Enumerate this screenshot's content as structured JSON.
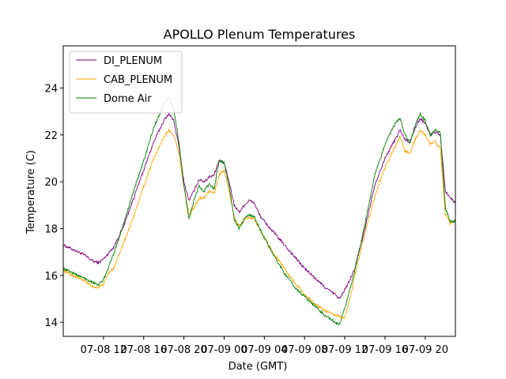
{
  "chart_data": {
    "type": "line",
    "title": "APOLLO Plenum Temperatures",
    "xlabel": "Date (GMT)",
    "ylabel": "Temperature (C)",
    "x_unit": "hours since 07-08 08:00 GMT",
    "xlim": [
      0,
      39
    ],
    "ylim": [
      13.4,
      25.8
    ],
    "yticks": [
      14,
      16,
      18,
      20,
      22,
      24
    ],
    "xticks": [
      {
        "x": 4,
        "label": "07-08 12"
      },
      {
        "x": 8,
        "label": "07-08 16"
      },
      {
        "x": 12,
        "label": "07-08 20"
      },
      {
        "x": 16,
        "label": "07-09 00"
      },
      {
        "x": 20,
        "label": "07-09 04"
      },
      {
        "x": 24,
        "label": "07-09 08"
      },
      {
        "x": 28,
        "label": "07-09 12"
      },
      {
        "x": 32,
        "label": "07-09 16"
      },
      {
        "x": 36,
        "label": "07-09 20"
      }
    ],
    "legend_position": "top-left",
    "series": [
      {
        "name": "DI_PLENUM",
        "color": "#800080",
        "points": [
          [
            0,
            17.3
          ],
          [
            1,
            17.1
          ],
          [
            2,
            16.9
          ],
          [
            3,
            16.6
          ],
          [
            3.5,
            16.55
          ],
          [
            4,
            16.7
          ],
          [
            5,
            17.2
          ],
          [
            6,
            18.1
          ],
          [
            7,
            19.3
          ],
          [
            8,
            20.5
          ],
          [
            9,
            21.7
          ],
          [
            10,
            22.6
          ],
          [
            10.5,
            22.9
          ],
          [
            11,
            22.6
          ],
          [
            11.5,
            21.5
          ],
          [
            12,
            20.0
          ],
          [
            12.5,
            19.2
          ],
          [
            13,
            19.6
          ],
          [
            13.5,
            20.1
          ],
          [
            14,
            20.0
          ],
          [
            14.5,
            20.2
          ],
          [
            15,
            20.3
          ],
          [
            15.5,
            20.9
          ],
          [
            16,
            20.8
          ],
          [
            16.5,
            20.0
          ],
          [
            17,
            19.0
          ],
          [
            17.5,
            18.7
          ],
          [
            18,
            19.0
          ],
          [
            18.5,
            19.2
          ],
          [
            19,
            19.1
          ],
          [
            19.5,
            18.6
          ],
          [
            20,
            18.3
          ],
          [
            21,
            17.8
          ],
          [
            22,
            17.3
          ],
          [
            23,
            16.8
          ],
          [
            24,
            16.3
          ],
          [
            25,
            15.9
          ],
          [
            26,
            15.5
          ],
          [
            27,
            15.2
          ],
          [
            27.5,
            15.0
          ],
          [
            28,
            15.4
          ],
          [
            28.5,
            15.8
          ],
          [
            29,
            16.3
          ],
          [
            30,
            18.0
          ],
          [
            31,
            19.9
          ],
          [
            32,
            21.0
          ],
          [
            33,
            21.8
          ],
          [
            33.5,
            22.2
          ],
          [
            34,
            21.8
          ],
          [
            34.5,
            21.7
          ],
          [
            35,
            22.3
          ],
          [
            35.5,
            22.7
          ],
          [
            36,
            22.5
          ],
          [
            36.5,
            22.0
          ],
          [
            37,
            22.1
          ],
          [
            37.5,
            22.0
          ],
          [
            38,
            19.6
          ],
          [
            38.5,
            19.3
          ],
          [
            39,
            19.1
          ]
        ]
      },
      {
        "name": "CAB_PLENUM",
        "color": "#ffa500",
        "points": [
          [
            0,
            16.2
          ],
          [
            1,
            16.0
          ],
          [
            2,
            15.8
          ],
          [
            3,
            15.5
          ],
          [
            3.5,
            15.5
          ],
          [
            4,
            15.6
          ],
          [
            4.5,
            16.1
          ],
          [
            5,
            16.3
          ],
          [
            6,
            17.4
          ],
          [
            7,
            18.5
          ],
          [
            8,
            19.8
          ],
          [
            9,
            21.0
          ],
          [
            10,
            21.9
          ],
          [
            10.5,
            22.2
          ],
          [
            11,
            22.0
          ],
          [
            11.5,
            21.2
          ],
          [
            12,
            19.8
          ],
          [
            12.5,
            18.6
          ],
          [
            13,
            18.9
          ],
          [
            13.5,
            19.3
          ],
          [
            14,
            19.3
          ],
          [
            14.5,
            19.6
          ],
          [
            15,
            19.5
          ],
          [
            15.5,
            20.3
          ],
          [
            16,
            20.5
          ],
          [
            16.5,
            19.6
          ],
          [
            17,
            18.5
          ],
          [
            17.5,
            18.1
          ],
          [
            18,
            18.4
          ],
          [
            18.5,
            18.5
          ],
          [
            19,
            18.4
          ],
          [
            20,
            17.6
          ],
          [
            21,
            16.9
          ],
          [
            22,
            16.3
          ],
          [
            23,
            15.7
          ],
          [
            24,
            15.2
          ],
          [
            25,
            14.8
          ],
          [
            26,
            14.5
          ],
          [
            27,
            14.3
          ],
          [
            28,
            14.2
          ],
          [
            28.5,
            15.0
          ],
          [
            29,
            16.0
          ],
          [
            30,
            17.8
          ],
          [
            31,
            19.4
          ],
          [
            32,
            20.6
          ],
          [
            33,
            21.5
          ],
          [
            33.5,
            21.9
          ],
          [
            34,
            21.3
          ],
          [
            34.5,
            21.2
          ],
          [
            35,
            21.8
          ],
          [
            35.5,
            22.2
          ],
          [
            36,
            22.0
          ],
          [
            36.5,
            21.6
          ],
          [
            37,
            21.7
          ],
          [
            37.5,
            21.4
          ],
          [
            38,
            18.6
          ],
          [
            38.5,
            18.2
          ],
          [
            39,
            18.3
          ]
        ]
      },
      {
        "name": "Dome Air",
        "color": "#008000",
        "points": [
          [
            0,
            16.3
          ],
          [
            1,
            16.1
          ],
          [
            2,
            15.9
          ],
          [
            3,
            15.7
          ],
          [
            3.5,
            15.6
          ],
          [
            4,
            15.8
          ],
          [
            5,
            16.9
          ],
          [
            6,
            18.2
          ],
          [
            7,
            19.6
          ],
          [
            8,
            20.9
          ],
          [
            9,
            22.3
          ],
          [
            10,
            23.3
          ],
          [
            10.5,
            23.6
          ],
          [
            11,
            23.1
          ],
          [
            11.5,
            21.7
          ],
          [
            12,
            19.8
          ],
          [
            12.5,
            18.4
          ],
          [
            13,
            19.2
          ],
          [
            13.5,
            19.8
          ],
          [
            14,
            19.6
          ],
          [
            14.5,
            19.9
          ],
          [
            15,
            19.7
          ],
          [
            15.5,
            20.9
          ],
          [
            16,
            20.8
          ],
          [
            16.5,
            19.8
          ],
          [
            17,
            18.4
          ],
          [
            17.5,
            18.0
          ],
          [
            18,
            18.4
          ],
          [
            18.5,
            18.6
          ],
          [
            19,
            18.5
          ],
          [
            20,
            17.6
          ],
          [
            21,
            16.8
          ],
          [
            22,
            16.1
          ],
          [
            23,
            15.5
          ],
          [
            24,
            15.1
          ],
          [
            25,
            14.7
          ],
          [
            26,
            14.3
          ],
          [
            27,
            14.0
          ],
          [
            27.5,
            13.9
          ],
          [
            28,
            14.6
          ],
          [
            28.5,
            15.4
          ],
          [
            29,
            16.2
          ],
          [
            30,
            18.2
          ],
          [
            31,
            20.3
          ],
          [
            32,
            21.6
          ],
          [
            33,
            22.5
          ],
          [
            33.5,
            22.7
          ],
          [
            34,
            22.0
          ],
          [
            34.5,
            21.7
          ],
          [
            35,
            22.4
          ],
          [
            35.5,
            22.9
          ],
          [
            36,
            22.6
          ],
          [
            36.5,
            22.0
          ],
          [
            37,
            22.2
          ],
          [
            37.5,
            22.1
          ],
          [
            38,
            18.9
          ],
          [
            38.5,
            18.3
          ],
          [
            39,
            18.3
          ]
        ]
      }
    ]
  }
}
